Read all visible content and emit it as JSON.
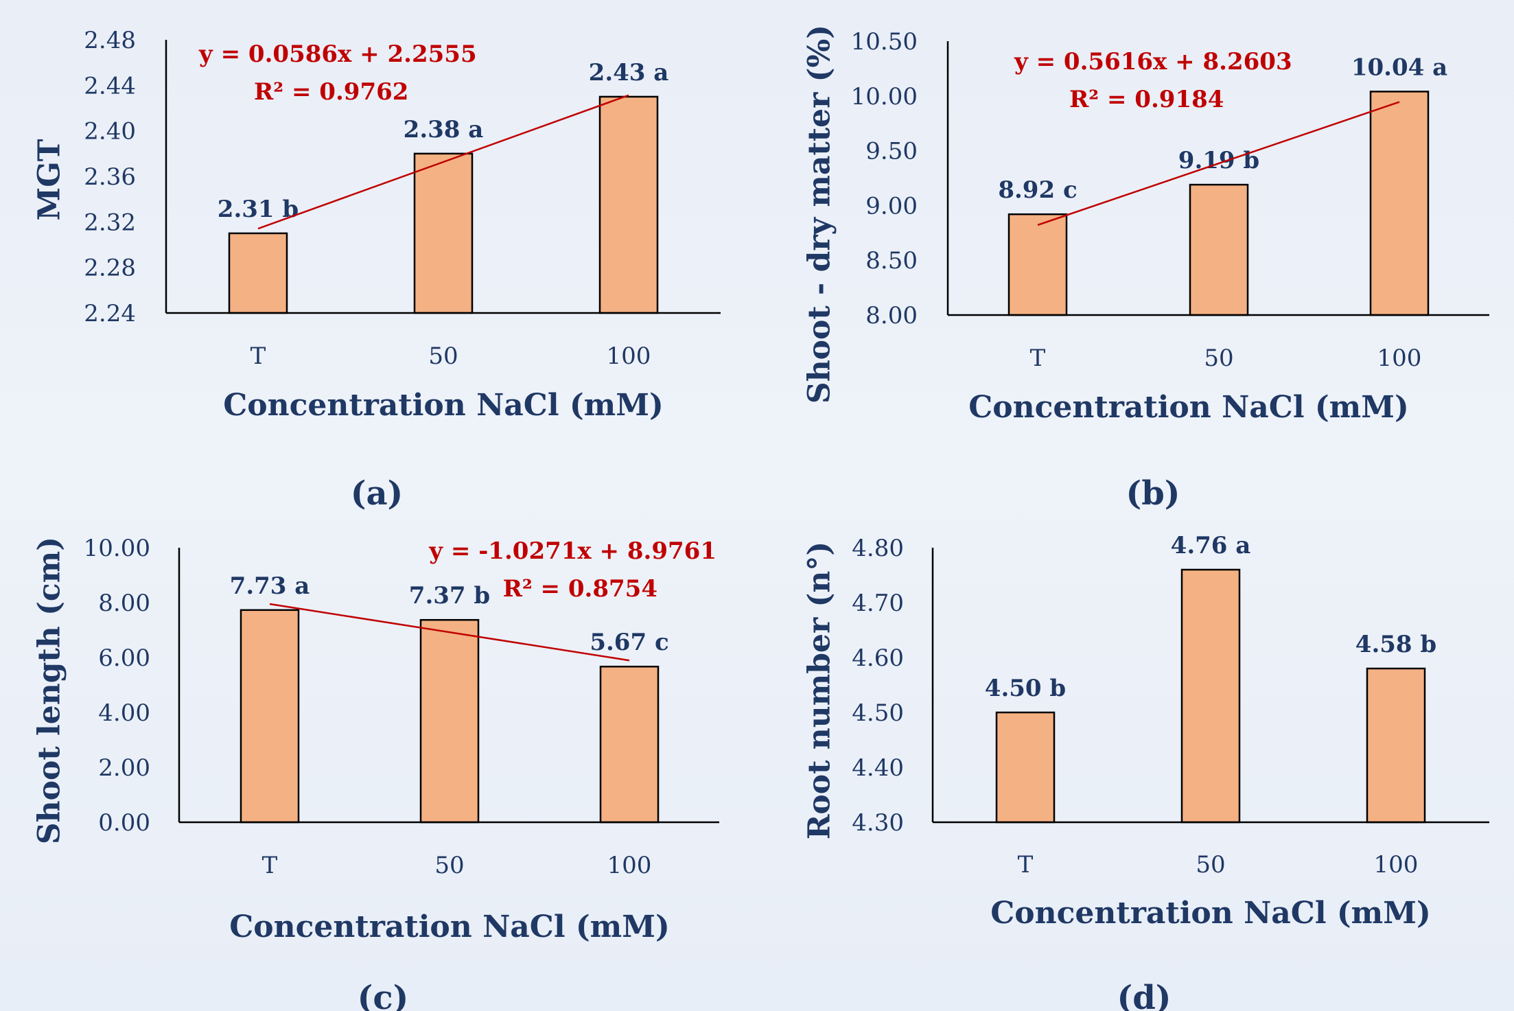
{
  "colors": {
    "bar_fill": "#f4b183",
    "bar_stroke": "#000000",
    "text": "#1f3864",
    "trendline": "#c00000"
  },
  "chart_data": [
    {
      "type": "bar",
      "panel_label": "(a)",
      "categories": [
        "T",
        "50",
        "100"
      ],
      "values": [
        2.31,
        2.38,
        2.43
      ],
      "data_labels": [
        "2.31 b",
        "2.38 a",
        "2.43 a"
      ],
      "xlabel": "Concentration NaCl (mM)",
      "ylabel": "MGT",
      "ylim": [
        2.24,
        2.48
      ],
      "yticks": [
        "2.24",
        "2.28",
        "2.32",
        "2.36",
        "2.40",
        "2.44",
        "2.48"
      ],
      "trendline": {
        "slope": 0.0586,
        "intercept": 2.2555,
        "equation": "y = 0.0586x + 2.2555",
        "r2": "R² = 0.9762"
      },
      "grid": false
    },
    {
      "type": "bar",
      "panel_label": "(b)",
      "categories": [
        "T",
        "50",
        "100"
      ],
      "values": [
        8.92,
        9.19,
        10.04
      ],
      "data_labels": [
        "8.92 c",
        "9.19 b",
        "10.04 a"
      ],
      "xlabel": "Concentration NaCl (mM)",
      "ylabel": "Shoot - dry matter (%)",
      "ylim": [
        8.0,
        10.5
      ],
      "yticks": [
        "8.00",
        "8.50",
        "9.00",
        "9.50",
        "10.00",
        "10.50"
      ],
      "trendline": {
        "slope": 0.5616,
        "intercept": 8.2603,
        "equation": "y = 0.5616x + 8.2603",
        "r2": "R² = 0.9184"
      },
      "grid": false
    },
    {
      "type": "bar",
      "panel_label": "(c)",
      "categories": [
        "T",
        "50",
        "100"
      ],
      "values": [
        7.73,
        7.37,
        5.67
      ],
      "data_labels": [
        "7.73 a",
        "7.37 b",
        "5.67 c"
      ],
      "xlabel": "Concentration NaCl (mM)",
      "ylabel": "Shoot length (cm)",
      "ylim": [
        0,
        10
      ],
      "yticks": [
        "0.00",
        "2.00",
        "4.00",
        "6.00",
        "8.00",
        "10.00"
      ],
      "trendline": {
        "slope": -1.0271,
        "intercept": 8.9761,
        "equation": "y = -1.0271x + 8.9761",
        "r2": "R² = 0.8754"
      },
      "grid": false
    },
    {
      "type": "bar",
      "panel_label": "(d)",
      "categories": [
        "T",
        "50",
        "100"
      ],
      "values": [
        4.5,
        4.76,
        4.58
      ],
      "data_labels": [
        "4.50 b",
        "4.76 a",
        "4.58 b"
      ],
      "xlabel": "Concentration NaCl (mM)",
      "ylabel": "Root number (n°)",
      "ylim": [
        4.3,
        4.8
      ],
      "yticks": [
        "4.30",
        "4.40",
        "4.50",
        "4.60",
        "4.70",
        "4.80"
      ],
      "grid": false
    }
  ]
}
